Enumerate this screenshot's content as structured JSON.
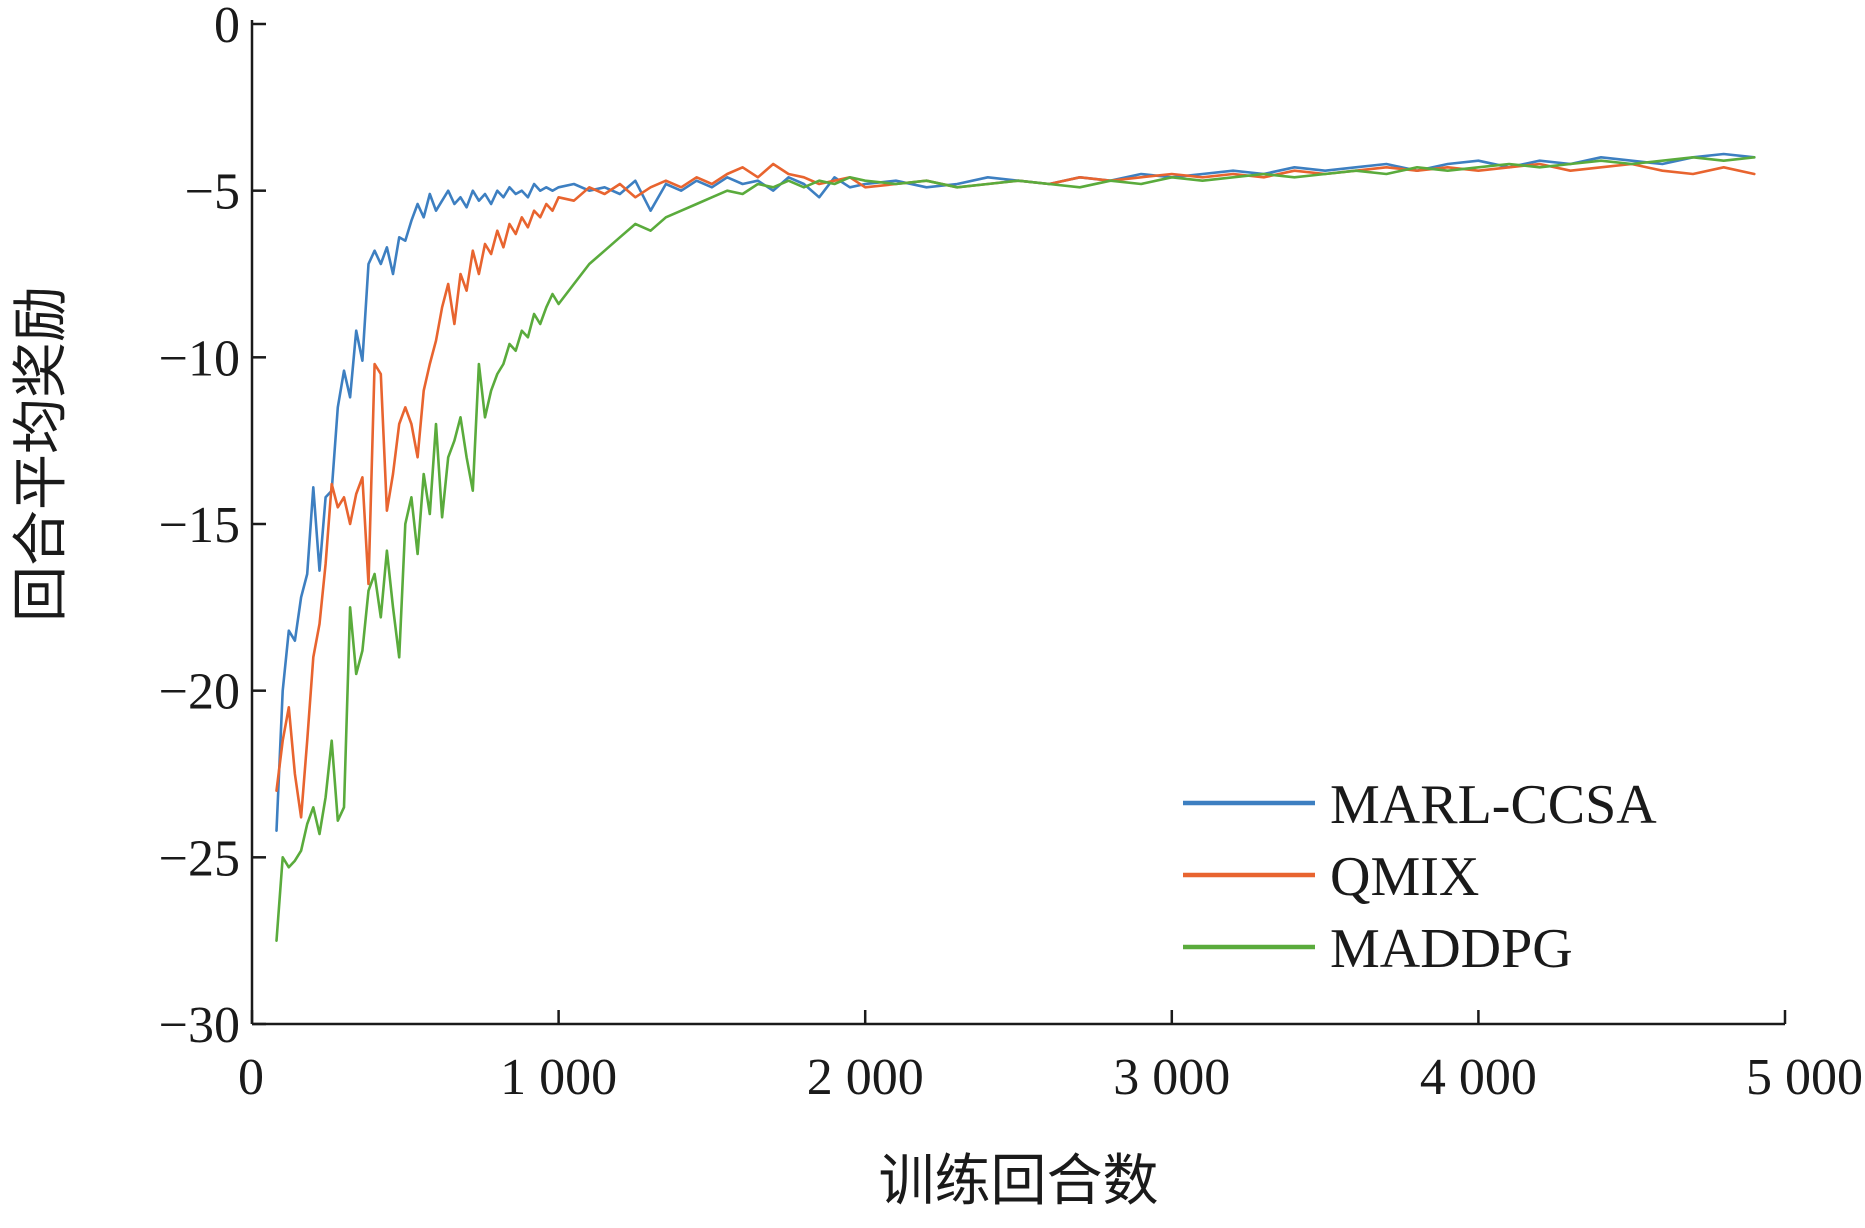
{
  "chart_data": {
    "type": "line",
    "title": "",
    "xlabel": "训练回合数",
    "ylabel": "回合平均奖励",
    "xlim": [
      0,
      5000
    ],
    "ylim": [
      -30,
      0
    ],
    "xticks": [
      {
        "value": 0,
        "label": "0"
      },
      {
        "value": 1000,
        "label": "1 000"
      },
      {
        "value": 2000,
        "label": "2 000"
      },
      {
        "value": 3000,
        "label": "3 000"
      },
      {
        "value": 4000,
        "label": "4 000"
      },
      {
        "value": 5000,
        "label": "5 000"
      }
    ],
    "yticks": [
      {
        "value": 0,
        "label": "0"
      },
      {
        "value": -5,
        "label": "−5"
      },
      {
        "value": -10,
        "label": "−10"
      },
      {
        "value": -15,
        "label": "−15"
      },
      {
        "value": -20,
        "label": "−20"
      },
      {
        "value": -25,
        "label": "−25"
      },
      {
        "value": -30,
        "label": "−30"
      }
    ],
    "grid": false,
    "legend_position": "bottom-right",
    "series": [
      {
        "name": "MARL-CCSA",
        "color": "#3d7fc1",
        "x": [
          80,
          100,
          120,
          140,
          160,
          180,
          200,
          220,
          240,
          260,
          280,
          300,
          320,
          340,
          360,
          380,
          400,
          420,
          440,
          460,
          480,
          500,
          520,
          540,
          560,
          580,
          600,
          620,
          640,
          660,
          680,
          700,
          720,
          740,
          760,
          780,
          800,
          820,
          840,
          860,
          880,
          900,
          920,
          940,
          960,
          980,
          1000,
          1050,
          1100,
          1150,
          1200,
          1250,
          1300,
          1350,
          1400,
          1450,
          1500,
          1550,
          1600,
          1650,
          1700,
          1750,
          1800,
          1850,
          1900,
          1950,
          2000,
          2100,
          2200,
          2300,
          2400,
          2500,
          2600,
          2700,
          2800,
          2900,
          3000,
          3100,
          3200,
          3300,
          3400,
          3500,
          3600,
          3700,
          3800,
          3900,
          4000,
          4100,
          4200,
          4300,
          4400,
          4500,
          4600,
          4700,
          4800,
          4900
        ],
        "y": [
          -24.2,
          -20.0,
          -18.2,
          -18.5,
          -17.2,
          -16.5,
          -13.9,
          -16.4,
          -14.2,
          -14.0,
          -11.5,
          -10.4,
          -11.2,
          -9.2,
          -10.1,
          -7.2,
          -6.8,
          -7.2,
          -6.7,
          -7.5,
          -6.4,
          -6.5,
          -5.9,
          -5.4,
          -5.8,
          -5.1,
          -5.6,
          -5.3,
          -5.0,
          -5.4,
          -5.2,
          -5.5,
          -5.0,
          -5.3,
          -5.1,
          -5.4,
          -5.0,
          -5.2,
          -4.9,
          -5.1,
          -5.0,
          -5.2,
          -4.8,
          -5.0,
          -4.9,
          -5.0,
          -4.9,
          -4.8,
          -5.0,
          -4.9,
          -5.1,
          -4.7,
          -5.6,
          -4.8,
          -5.0,
          -4.7,
          -4.9,
          -4.6,
          -4.8,
          -4.7,
          -5.0,
          -4.6,
          -4.8,
          -5.2,
          -4.6,
          -4.9,
          -4.8,
          -4.7,
          -4.9,
          -4.8,
          -4.6,
          -4.7,
          -4.8,
          -4.6,
          -4.7,
          -4.5,
          -4.6,
          -4.5,
          -4.4,
          -4.5,
          -4.3,
          -4.4,
          -4.3,
          -4.2,
          -4.4,
          -4.2,
          -4.1,
          -4.3,
          -4.1,
          -4.2,
          -4.0,
          -4.1,
          -4.2,
          -4.0,
          -3.9,
          -4.0
        ]
      },
      {
        "name": "QMIX",
        "color": "#e8642f",
        "x": [
          80,
          100,
          120,
          140,
          160,
          180,
          200,
          220,
          240,
          260,
          280,
          300,
          320,
          340,
          360,
          380,
          400,
          420,
          440,
          460,
          480,
          500,
          520,
          540,
          560,
          580,
          600,
          620,
          640,
          660,
          680,
          700,
          720,
          740,
          760,
          780,
          800,
          820,
          840,
          860,
          880,
          900,
          920,
          940,
          960,
          980,
          1000,
          1050,
          1100,
          1150,
          1200,
          1250,
          1300,
          1350,
          1400,
          1450,
          1500,
          1550,
          1600,
          1650,
          1700,
          1750,
          1800,
          1850,
          1900,
          1950,
          2000,
          2100,
          2200,
          2300,
          2400,
          2500,
          2600,
          2700,
          2800,
          2900,
          3000,
          3100,
          3200,
          3300,
          3400,
          3500,
          3600,
          3700,
          3800,
          3900,
          4000,
          4100,
          4200,
          4300,
          4400,
          4500,
          4600,
          4700,
          4800,
          4900
        ],
        "y": [
          -23.0,
          -21.5,
          -20.5,
          -22.5,
          -23.8,
          -21.5,
          -19.0,
          -18.0,
          -16.2,
          -13.8,
          -14.5,
          -14.2,
          -15.0,
          -14.1,
          -13.6,
          -16.8,
          -10.2,
          -10.5,
          -14.6,
          -13.5,
          -12.0,
          -11.5,
          -12.0,
          -13.0,
          -11.0,
          -10.2,
          -9.5,
          -8.5,
          -7.8,
          -9.0,
          -7.5,
          -8.0,
          -6.8,
          -7.5,
          -6.6,
          -6.9,
          -6.2,
          -6.7,
          -6.0,
          -6.3,
          -5.8,
          -6.1,
          -5.6,
          -5.8,
          -5.4,
          -5.6,
          -5.2,
          -5.3,
          -4.9,
          -5.1,
          -4.8,
          -5.2,
          -4.9,
          -4.7,
          -4.9,
          -4.6,
          -4.8,
          -4.5,
          -4.3,
          -4.6,
          -4.2,
          -4.5,
          -4.6,
          -4.8,
          -4.7,
          -4.6,
          -4.9,
          -4.8,
          -4.7,
          -4.9,
          -4.8,
          -4.7,
          -4.8,
          -4.6,
          -4.7,
          -4.6,
          -4.5,
          -4.6,
          -4.5,
          -4.6,
          -4.4,
          -4.5,
          -4.4,
          -4.3,
          -4.4,
          -4.3,
          -4.4,
          -4.3,
          -4.2,
          -4.4,
          -4.3,
          -4.2,
          -4.4,
          -4.5,
          -4.3,
          -4.5
        ]
      },
      {
        "name": "MADDPG",
        "color": "#5aab3c",
        "x": [
          80,
          100,
          120,
          140,
          160,
          180,
          200,
          220,
          240,
          260,
          280,
          300,
          320,
          340,
          360,
          380,
          400,
          420,
          440,
          460,
          480,
          500,
          520,
          540,
          560,
          580,
          600,
          620,
          640,
          660,
          680,
          700,
          720,
          740,
          760,
          780,
          800,
          820,
          840,
          860,
          880,
          900,
          920,
          940,
          960,
          980,
          1000,
          1050,
          1100,
          1150,
          1200,
          1250,
          1300,
          1350,
          1400,
          1450,
          1500,
          1550,
          1600,
          1650,
          1700,
          1750,
          1800,
          1850,
          1900,
          1950,
          2000,
          2100,
          2200,
          2300,
          2400,
          2500,
          2600,
          2700,
          2800,
          2900,
          3000,
          3100,
          3200,
          3300,
          3400,
          3500,
          3600,
          3700,
          3800,
          3900,
          4000,
          4100,
          4200,
          4300,
          4400,
          4500,
          4600,
          4700,
          4800,
          4900
        ],
        "y": [
          -27.5,
          -25.0,
          -25.3,
          -25.1,
          -24.8,
          -24.0,
          -23.5,
          -24.3,
          -23.2,
          -21.5,
          -23.9,
          -23.5,
          -17.5,
          -19.5,
          -18.8,
          -17.0,
          -16.5,
          -17.8,
          -15.8,
          -17.5,
          -19.0,
          -15.0,
          -14.2,
          -15.9,
          -13.5,
          -14.7,
          -12.0,
          -14.8,
          -13.0,
          -12.5,
          -11.8,
          -13.0,
          -14.0,
          -10.2,
          -11.8,
          -11.0,
          -10.5,
          -10.2,
          -9.6,
          -9.8,
          -9.2,
          -9.4,
          -8.7,
          -9.0,
          -8.5,
          -8.1,
          -8.4,
          -7.8,
          -7.2,
          -6.8,
          -6.4,
          -6.0,
          -6.2,
          -5.8,
          -5.6,
          -5.4,
          -5.2,
          -5.0,
          -5.1,
          -4.8,
          -4.9,
          -4.7,
          -4.9,
          -4.7,
          -4.8,
          -4.6,
          -4.7,
          -4.8,
          -4.7,
          -4.9,
          -4.8,
          -4.7,
          -4.8,
          -4.9,
          -4.7,
          -4.8,
          -4.6,
          -4.7,
          -4.6,
          -4.5,
          -4.6,
          -4.5,
          -4.4,
          -4.5,
          -4.3,
          -4.4,
          -4.3,
          -4.2,
          -4.3,
          -4.2,
          -4.1,
          -4.2,
          -4.1,
          -4.0,
          -4.1,
          -4.0
        ]
      }
    ]
  }
}
